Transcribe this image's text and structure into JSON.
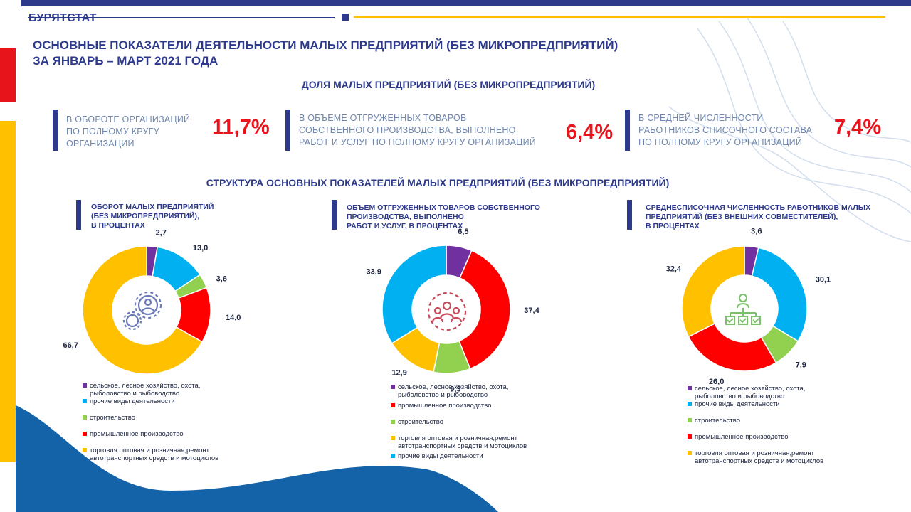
{
  "brand": "БУРЯТСТАТ",
  "title": {
    "line1": "ОСНОВНЫЕ ПОКАЗАТЕЛИ ДЕЯТЕЛЬНОСТИ МАЛЫХ ПРЕДПРИЯТИЙ (БЕЗ МИКРОПРЕДПРИЯТИЙ)",
    "line2": "ЗА ЯНВАРЬ – МАРТ 2021 ГОДА"
  },
  "share_title": "ДОЛЯ МАЛЫХ ПРЕДПРИЯТИЙ (БЕЗ МИКРОПРЕДПРИЯТИЙ)",
  "stats": [
    {
      "lines": [
        "В ОБОРОТЕ ОРГАНИЗАЦИЙ",
        "ПО ПОЛНОМУ КРУГУ",
        "ОРГАНИЗАЦИЙ"
      ],
      "value": "11,7%"
    },
    {
      "lines": [
        "В ОБЪЕМЕ ОТГРУЖЕННЫХ ТОВАРОВ",
        "СОБСТВЕННОГО ПРОИЗВОДСТВА, ВЫПОЛНЕНО",
        "РАБОТ И УСЛУГ ПО ПОЛНОМУ КРУГУ ОРГАНИЗАЦИЙ"
      ],
      "value": "6,4%"
    },
    {
      "lines": [
        "В СРЕДНЕЙ ЧИСЛЕННОСТИ",
        "РАБОТНИКОВ СПИСОЧНОГО СОСТАВА",
        "ПО ПОЛНОМУ КРУГУ ОРГАНИЗАЦИЙ"
      ],
      "value": "7,4%"
    }
  ],
  "structure_title": "СТРУКТУРА ОСНОВНЫХ ПОКАЗАТЕЛЕЙ МАЛЫХ ПРЕДПРИЯТИЙ (БЕЗ МИКРОПРЕДПРИЯТИЙ)",
  "colors": {
    "agriculture": "#7030a0",
    "other": "#00b0f0",
    "construction": "#92d050",
    "industry": "#ff0000",
    "trade": "#ffc000",
    "navy": "#2d3a8c",
    "stat_red": "#e8141c"
  },
  "chart_data": [
    {
      "type": "pie",
      "title_lines": [
        "ОБОРОТ МАЛЫХ ПРЕДПРИЯТИЙ",
        "(БЕЗ МИКРОПРЕДПРИЯТИЙ),",
        "В ПРОЦЕНТАХ"
      ],
      "icon": "gears-person-icon",
      "slices": [
        {
          "key": "agriculture",
          "value": 2.7,
          "label": "2,7"
        },
        {
          "key": "other",
          "value": 13.0,
          "label": "13,0"
        },
        {
          "key": "construction",
          "value": 3.6,
          "label": "3,6"
        },
        {
          "key": "industry",
          "value": 14.0,
          "label": "14,0"
        },
        {
          "key": "trade",
          "value": 66.7,
          "label": "66,7"
        }
      ],
      "legend": [
        {
          "key": "agriculture",
          "lines": [
            "сельское, лесное хозяйство, охота,",
            "рыболовство и рыбоводство"
          ]
        },
        {
          "key": "other",
          "lines": [
            "прочие виды деятельности"
          ]
        },
        {
          "key": "construction",
          "lines": [
            "строительство"
          ]
        },
        {
          "key": "industry",
          "lines": [
            "промышленное производство"
          ]
        },
        {
          "key": "trade",
          "lines": [
            "торговля оптовая и розничная;ремонт",
            "автотранспортных средств и мотоциклов"
          ]
        }
      ]
    },
    {
      "type": "pie",
      "title_lines": [
        "ОБЪЕМ ОТГРУЖЕННЫХ ТОВАРОВ СОБСТВЕННОГО",
        "ПРОИЗВОДСТВА, ВЫПОЛНЕНО",
        "РАБОТ И УСЛУГ, В ПРОЦЕНТАХ"
      ],
      "icon": "people-gear-icon",
      "slices": [
        {
          "key": "agriculture",
          "value": 6.5,
          "label": "6,5"
        },
        {
          "key": "industry",
          "value": 37.4,
          "label": "37,4"
        },
        {
          "key": "construction",
          "value": 9.3,
          "label": "9,3"
        },
        {
          "key": "trade",
          "value": 12.9,
          "label": "12,9"
        },
        {
          "key": "other",
          "value": 33.9,
          "label": "33,9"
        }
      ],
      "legend": [
        {
          "key": "agriculture",
          "lines": [
            "сельское, лесное хозяйство, охота,",
            "рыболовство и рыбоводство"
          ]
        },
        {
          "key": "industry",
          "lines": [
            "промышленное производство"
          ]
        },
        {
          "key": "construction",
          "lines": [
            "строительство"
          ]
        },
        {
          "key": "trade",
          "lines": [
            "торговля оптовая и розничная;ремонт",
            "автотранспортных средств и мотоциклов"
          ]
        },
        {
          "key": "other",
          "lines": [
            "прочие виды деятельности"
          ]
        }
      ]
    },
    {
      "type": "pie",
      "title_lines": [
        "СРЕДНЕСПИСОЧНАЯ ЧИСЛЕННОСТЬ РАБОТНИКОВ МАЛЫХ",
        "ПРЕДПРИЯТИЙ (БЕЗ ВНЕШНИХ СОВМЕСТИТЕЛЕЙ),",
        "В ПРОЦЕНТАХ"
      ],
      "icon": "org-structure-icon",
      "slices": [
        {
          "key": "agriculture",
          "value": 3.6,
          "label": "3,6"
        },
        {
          "key": "other",
          "value": 30.1,
          "label": "30,1"
        },
        {
          "key": "construction",
          "value": 7.9,
          "label": "7,9"
        },
        {
          "key": "industry",
          "value": 26.0,
          "label": "26,0"
        },
        {
          "key": "trade",
          "value": 32.4,
          "label": "32,4"
        }
      ],
      "legend": [
        {
          "key": "agriculture",
          "lines": [
            "сельское, лесное хозяйство, охота,",
            "рыболовство и рыбоводство"
          ]
        },
        {
          "key": "other",
          "lines": [
            "прочие виды деятельности"
          ]
        },
        {
          "key": "construction",
          "lines": [
            "строительство"
          ]
        },
        {
          "key": "industry",
          "lines": [
            "промышленное производство"
          ]
        },
        {
          "key": "trade",
          "lines": [
            "торговля оптовая и розничная;ремонт",
            "автотранспортных средств и мотоциклов"
          ]
        }
      ]
    }
  ]
}
